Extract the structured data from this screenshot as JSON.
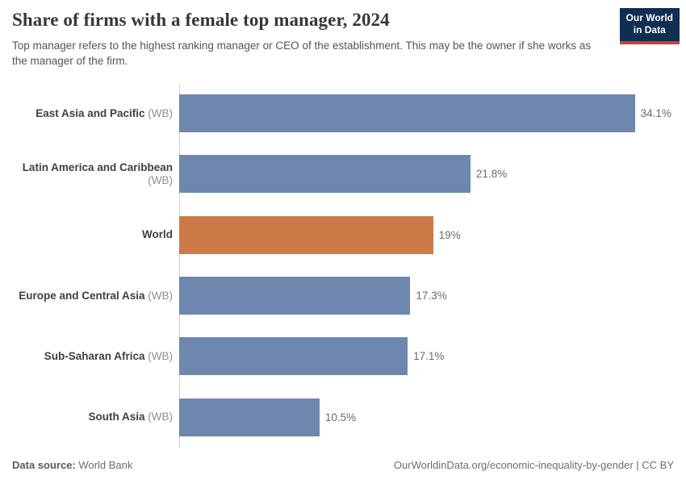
{
  "header": {
    "title": "Share of firms with a female top manager, 2024",
    "subtitle": "Top manager refers to the highest ranking manager or CEO of the establishment. This may be the owner if she works as the manager of the firm.",
    "logo": {
      "line1": "Our World",
      "line2": "in Data"
    }
  },
  "chart_data": {
    "type": "bar",
    "orientation": "horizontal",
    "title": "Share of firms with a female top manager, 2024",
    "xlabel": "",
    "ylabel": "",
    "grid": false,
    "legend": "none",
    "unit": "%",
    "max_value": 34.1,
    "categories": [
      "East Asia and Pacific",
      "Latin America and Caribbean",
      "World",
      "Europe and Central Asia",
      "Sub-Saharan Africa",
      "South Asia"
    ],
    "category_suffixes": [
      "(WB)",
      "(WB)",
      "",
      "(WB)",
      "(WB)",
      "(WB)"
    ],
    "values": [
      34.1,
      21.8,
      19,
      17.3,
      17.1,
      10.5
    ],
    "value_labels": [
      "34.1%",
      "21.8%",
      "19%",
      "17.3%",
      "17.1%",
      "10.5%"
    ],
    "bar_colors": [
      "#6e87ae",
      "#6e87ae",
      "#cc7b48",
      "#6e87ae",
      "#6e87ae",
      "#6e87ae"
    ]
  },
  "footer": {
    "source_label": "Data source:",
    "source_value": "World Bank",
    "attribution": "OurWorldinData.org/economic-inequality-by-gender | CC BY"
  },
  "colors": {
    "bar_blue": "#6e87ae",
    "bar_orange": "#cc7b48",
    "logo_bg": "#0f2e52",
    "logo_red": "#d13d33",
    "axis": "#d4d4d4"
  }
}
